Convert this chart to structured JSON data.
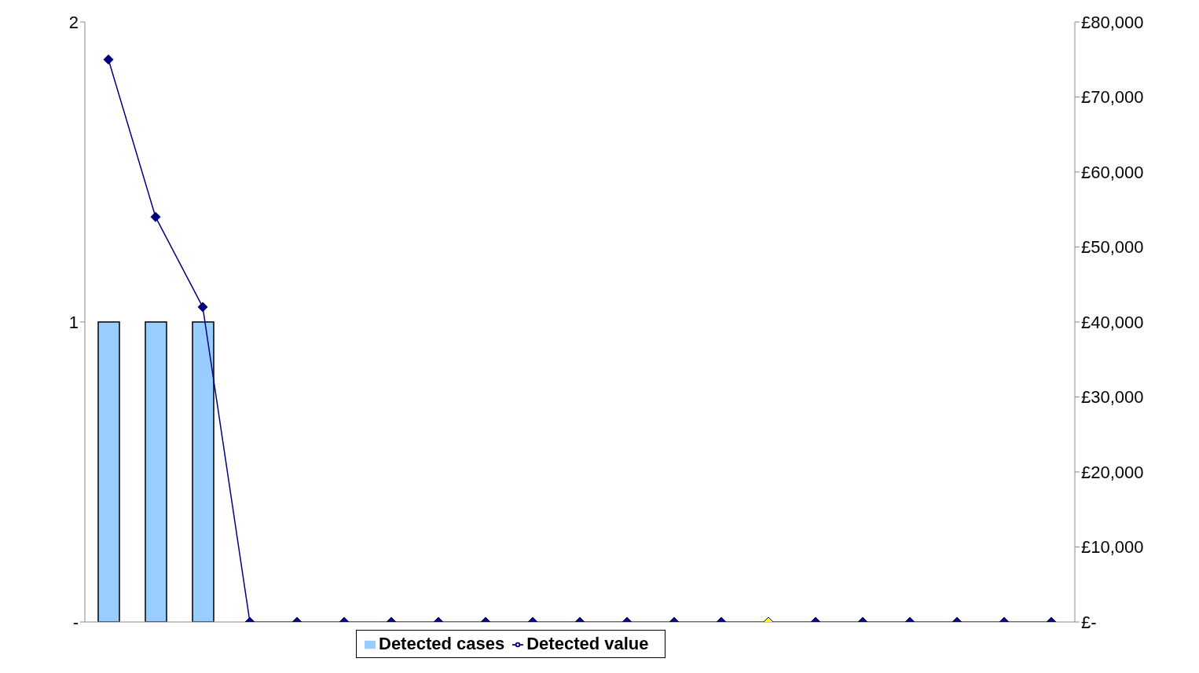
{
  "chart_data": {
    "type": "bar",
    "categories": [
      null,
      null,
      null,
      null,
      null,
      null,
      null,
      null,
      null,
      null,
      null,
      null,
      null,
      null,
      null,
      null,
      null,
      null,
      null,
      null,
      null
    ],
    "series": [
      {
        "name": "Detected cases",
        "color": "#99ccff",
        "values": [
          1,
          1,
          1,
          0,
          0,
          0,
          0,
          0,
          0,
          0,
          0,
          0,
          0,
          0,
          0,
          0,
          0,
          0,
          0,
          0,
          0
        ]
      },
      {
        "name": "Detected value",
        "type": "line",
        "axis": "y2",
        "color": "#000080",
        "colors": [
          "#000080",
          "#000080",
          "#000080",
          "#000080",
          "#000080",
          "#000080",
          "#000080",
          "#000080",
          "#000080",
          "#000080",
          "#000080",
          "#000080",
          "#000080",
          "#000080",
          "#ffff00",
          "#000080",
          "#000080",
          "#000080",
          "#000080",
          "#000080",
          "#000080"
        ],
        "values": [
          75000,
          54000,
          42000,
          0,
          0,
          0,
          0,
          0,
          0,
          0,
          0,
          0,
          0,
          0,
          0,
          0,
          0,
          0,
          0,
          0,
          0
        ]
      }
    ],
    "ylim": [
      0,
      2
    ],
    "yticks": [
      {
        "value": 0,
        "label": "-"
      },
      1,
      2
    ],
    "y2lim": [
      0,
      80000
    ],
    "y2ticks": [
      {
        "value": 0,
        "label": "£-"
      },
      {
        "value": 10000,
        "label": "£10,000"
      },
      {
        "value": 20000,
        "label": "£20,000"
      },
      {
        "value": 30000,
        "label": "£30,000"
      },
      {
        "value": 40000,
        "label": "£40,000"
      },
      {
        "value": 50000,
        "label": "£50,000"
      },
      {
        "value": 60000,
        "label": "£60,000"
      },
      {
        "value": 70000,
        "label": "£70,000"
      },
      {
        "value": 80000,
        "label": "£80,000"
      }
    ],
    "grid": false,
    "legend": "bottom",
    "marker": "diamond",
    "line_style": "solid"
  }
}
